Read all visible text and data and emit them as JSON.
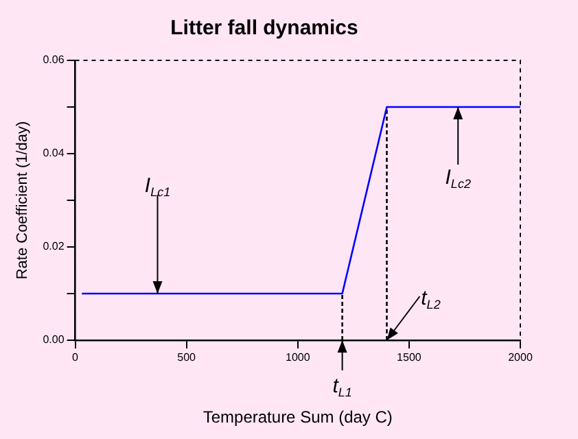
{
  "chart_data": {
    "type": "line",
    "title": "Litter fall dynamics",
    "xlabel": "Temperature Sum (day C)",
    "ylabel": "Rate Coefficient (1/day)",
    "series": [
      {
        "color": "#0000ff",
        "x": [
          30,
          1200,
          1400,
          2000
        ],
        "values": [
          0.01,
          0.01,
          0.05,
          0.05
        ]
      },
      {
        "color": "#000000",
        "x": [
          1200,
          1200
        ],
        "values": [
          0,
          0.01
        ],
        "line_style": "dashed"
      },
      {
        "color": "#000000",
        "x": [
          1400,
          1400
        ],
        "values": [
          0,
          0.05
        ],
        "line_style": "dashed"
      }
    ],
    "xlim": [
      0,
      2000
    ],
    "xticks": [
      0,
      500,
      1000,
      1500,
      2000
    ],
    "ylim": [
      0,
      0.06
    ],
    "yticks": [
      {
        "value": 0,
        "label": "0.00"
      },
      {
        "value": 0.01,
        "label": null
      },
      0.02,
      {
        "value": 0.03,
        "label": null
      },
      0.04,
      {
        "value": 0.05,
        "label": null
      },
      0.06
    ],
    "annotations": [
      {
        "text": "I$_{Lc1}$",
        "x": 370,
        "y": 0.01
      },
      {
        "text": "I$_{Lc2}$",
        "x": 1720,
        "y": 0.05
      },
      {
        "text": "t$_{L1}$",
        "x": 1200,
        "y": 0
      },
      {
        "text": "t$_{L2}$",
        "x": 1400,
        "y": 0
      }
    ],
    "grid": false,
    "legend": false,
    "marker": "none",
    "line_style": "solid"
  }
}
